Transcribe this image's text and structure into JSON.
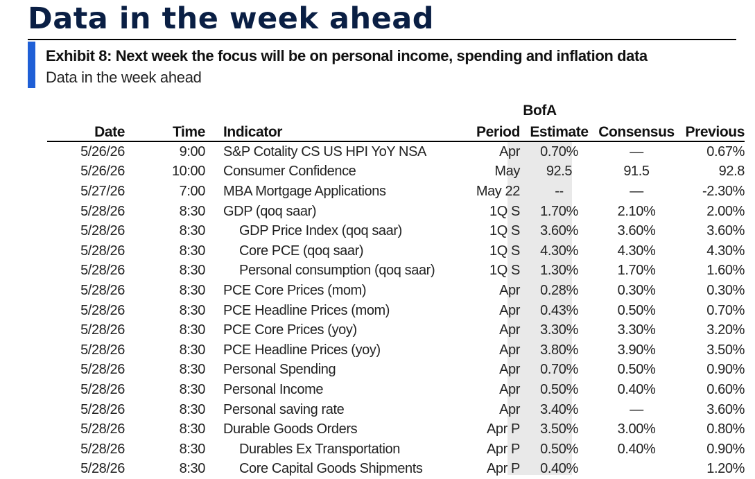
{
  "page_title": "Data in the week ahead",
  "exhibit": {
    "title": "Exhibit 8: Next week the focus will be on personal income, spending and inflation data",
    "subtitle": "Data in the week ahead"
  },
  "table": {
    "estimate_group_label": "BofA",
    "columns": {
      "date": "Date",
      "time": "Time",
      "indicator": "Indicator",
      "period": "Period",
      "estimate": "Estimate",
      "consensus": "Consensus",
      "previous": "Previous"
    },
    "rows": [
      {
        "date": "5/26/26",
        "time": "9:00",
        "indicator": "S&P Cotality CS US HPI YoY NSA",
        "indent": false,
        "period": "Apr",
        "estimate": "0.70%",
        "consensus": "—",
        "previous": "0.67%"
      },
      {
        "date": "5/26/26",
        "time": "10:00",
        "indicator": "Consumer Confidence",
        "indent": false,
        "period": "May",
        "estimate": "92.5",
        "consensus": "91.5",
        "previous": "92.8"
      },
      {
        "date": "5/27/26",
        "time": "7:00",
        "indicator": "MBA Mortgage Applications",
        "indent": false,
        "period": "May 22",
        "estimate": "--",
        "consensus": "—",
        "previous": "-2.30%"
      },
      {
        "date": "5/28/26",
        "time": "8:30",
        "indicator": "GDP (qoq saar)",
        "indent": false,
        "period": "1Q S",
        "estimate": "1.70%",
        "consensus": "2.10%",
        "previous": "2.00%"
      },
      {
        "date": "5/28/26",
        "time": "8:30",
        "indicator": "GDP Price Index (qoq saar)",
        "indent": true,
        "period": "1Q S",
        "estimate": "3.60%",
        "consensus": "3.60%",
        "previous": "3.60%"
      },
      {
        "date": "5/28/26",
        "time": "8:30",
        "indicator": "Core PCE (qoq saar)",
        "indent": true,
        "period": "1Q S",
        "estimate": "4.30%",
        "consensus": "4.30%",
        "previous": "4.30%"
      },
      {
        "date": "5/28/26",
        "time": "8:30",
        "indicator": "Personal consumption (qoq saar)",
        "indent": true,
        "period": "1Q S",
        "estimate": "1.30%",
        "consensus": "1.70%",
        "previous": "1.60%"
      },
      {
        "date": "5/28/26",
        "time": "8:30",
        "indicator": "PCE Core Prices (mom)",
        "indent": false,
        "period": "Apr",
        "estimate": "0.28%",
        "consensus": "0.30%",
        "previous": "0.30%"
      },
      {
        "date": "5/28/26",
        "time": "8:30",
        "indicator": "PCE Headline Prices (mom)",
        "indent": false,
        "period": "Apr",
        "estimate": "0.43%",
        "consensus": "0.50%",
        "previous": "0.70%"
      },
      {
        "date": "5/28/26",
        "time": "8:30",
        "indicator": "PCE Core Prices (yoy)",
        "indent": false,
        "period": "Apr",
        "estimate": "3.30%",
        "consensus": "3.30%",
        "previous": "3.20%"
      },
      {
        "date": "5/28/26",
        "time": "8:30",
        "indicator": "PCE Headline Prices (yoy)",
        "indent": false,
        "period": "Apr",
        "estimate": "3.80%",
        "consensus": "3.90%",
        "previous": "3.50%"
      },
      {
        "date": "5/28/26",
        "time": "8:30",
        "indicator": "Personal Spending",
        "indent": false,
        "period": "Apr",
        "estimate": "0.70%",
        "consensus": "0.50%",
        "previous": "0.90%"
      },
      {
        "date": "5/28/26",
        "time": "8:30",
        "indicator": "Personal Income",
        "indent": false,
        "period": "Apr",
        "estimate": "0.50%",
        "consensus": "0.40%",
        "previous": "0.60%"
      },
      {
        "date": "5/28/26",
        "time": "8:30",
        "indicator": "Personal saving rate",
        "indent": false,
        "period": "Apr",
        "estimate": "3.40%",
        "consensus": "—",
        "previous": "3.60%"
      },
      {
        "date": "5/28/26",
        "time": "8:30",
        "indicator": "Durable Goods Orders",
        "indent": false,
        "period": "Apr P",
        "estimate": "3.50%",
        "consensus": "3.00%",
        "previous": "0.80%"
      },
      {
        "date": "5/28/26",
        "time": "8:30",
        "indicator": "Durables Ex Transportation",
        "indent": true,
        "period": "Apr P",
        "estimate": "0.50%",
        "consensus": "0.40%",
        "previous": "0.90%"
      },
      {
        "date": "5/28/26",
        "time": "8:30",
        "indicator": "Core Capital Goods Shipments",
        "indent": true,
        "period": "Apr P",
        "estimate": "0.40%",
        "consensus": "",
        "previous": "1.20%"
      }
    ]
  },
  "colors": {
    "title": "#0a1f44",
    "accent_bar": "#1f5fd6",
    "estimate_shade": "#e9e9e9"
  }
}
